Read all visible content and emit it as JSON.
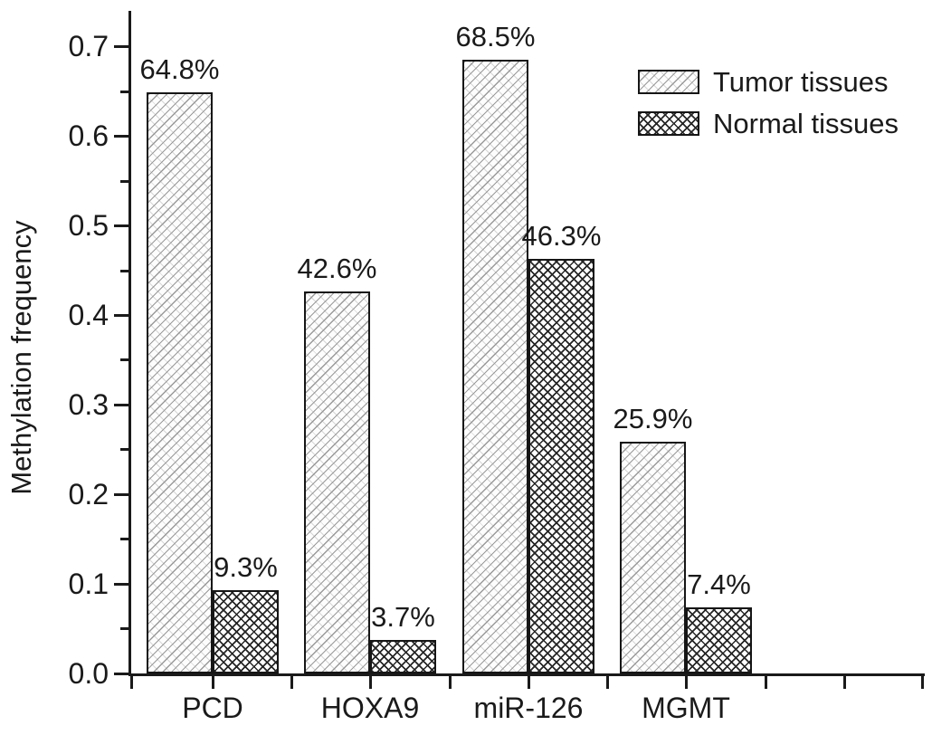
{
  "chart_data": {
    "type": "bar",
    "title": "",
    "xlabel": "",
    "ylabel": "Methylation frequency",
    "categories": [
      "PCD",
      "HOXA9",
      "miR-126",
      "MGMT"
    ],
    "series": [
      {
        "name": "Tumor tissues",
        "pattern": "light-diagonal-hatch",
        "values": [
          0.648,
          0.426,
          0.685,
          0.259
        ],
        "bar_labels": [
          "64.8%",
          "42.6%",
          "68.5%",
          "25.9%"
        ]
      },
      {
        "name": "Normal tissues",
        "pattern": "dark-cross-hatch",
        "values": [
          0.093,
          0.037,
          0.463,
          0.074
        ],
        "bar_labels": [
          "9.3%",
          "3.7%",
          "46.3%",
          "7.4%"
        ]
      }
    ],
    "y_axis": {
      "min": 0.0,
      "max": 0.74,
      "major_step": 0.1,
      "minor_step": 0.05,
      "tick_labels": [
        "0.0",
        "0.1",
        "0.2",
        "0.3",
        "0.4",
        "0.5",
        "0.6",
        "0.7"
      ]
    },
    "legend": {
      "position": "top-right",
      "entries": [
        "Tumor tissues",
        "Normal tissues"
      ]
    },
    "grid": false,
    "colors": {
      "ink": "#1a1a1a",
      "background": "#ffffff",
      "tumor_hatch_line": "#9a9a9a",
      "normal_hatch_line": "#262626"
    }
  }
}
